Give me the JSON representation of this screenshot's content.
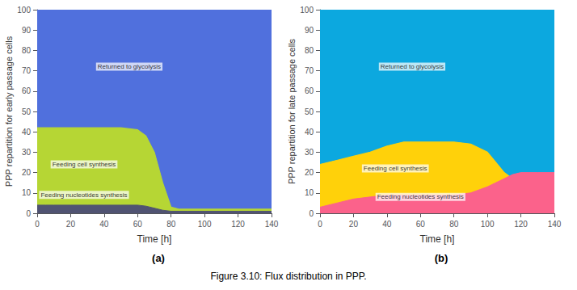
{
  "caption": "Figure 3.10: Flux distribution in PPP.",
  "chart_data": [
    {
      "type": "area",
      "title": "(a)",
      "xlabel": "Time [h]",
      "ylabel": "PPP repartition for early passage cells",
      "xlim": [
        0,
        140
      ],
      "ylim": [
        0,
        100
      ],
      "xticks": [
        0,
        20,
        40,
        60,
        80,
        100,
        120,
        140
      ],
      "yticks": [
        0,
        10,
        20,
        30,
        40,
        50,
        60,
        70,
        80,
        90,
        100
      ],
      "grid": false,
      "x": [
        0,
        5,
        10,
        20,
        30,
        40,
        50,
        60,
        65,
        70,
        75,
        80,
        85,
        90,
        100,
        110,
        120,
        130,
        140
      ],
      "series": [
        {
          "values": [
            4,
            4,
            4,
            4,
            4,
            4,
            4,
            4,
            3.5,
            2.5,
            1.5,
            1.0,
            1.0,
            1.0,
            1.0,
            1.0,
            1.0,
            1.0,
            1.0
          ]
        },
        {
          "values": [
            42,
            42,
            42,
            42,
            42,
            42,
            42,
            41,
            38,
            30,
            15,
            3,
            2,
            2,
            2,
            2,
            2,
            2,
            2
          ]
        }
      ],
      "annotations": [
        {
          "text": "Returned to glycolysis",
          "x": 55,
          "y": 72
        },
        {
          "text": "Feeding cell synthesis",
          "x": 28,
          "y": 24
        },
        {
          "text": "Feeding nucleotides synthesis",
          "x": 28,
          "y": 9
        }
      ]
    },
    {
      "type": "area",
      "title": "(b)",
      "xlabel": "Time [h]",
      "ylabel": "PPP repartition for late passage cells",
      "xlim": [
        0,
        140
      ],
      "ylim": [
        0,
        100
      ],
      "xticks": [
        0,
        20,
        40,
        60,
        80,
        100,
        120,
        140
      ],
      "yticks": [
        0,
        10,
        20,
        30,
        40,
        50,
        60,
        70,
        80,
        90,
        100
      ],
      "grid": false,
      "x": [
        0,
        10,
        20,
        30,
        40,
        50,
        60,
        70,
        80,
        90,
        100,
        105,
        110,
        115,
        120,
        125,
        130,
        140
      ],
      "series": [
        {
          "values": [
            3,
            5,
            7,
            8,
            9,
            9,
            9,
            9,
            9,
            10,
            13,
            15,
            17,
            19,
            20,
            20,
            20,
            20
          ]
        },
        {
          "values": [
            24,
            26,
            28,
            30,
            33,
            35,
            35,
            35,
            35,
            34,
            30,
            25,
            20,
            17,
            16,
            16,
            16,
            16
          ]
        }
      ],
      "annotations": [
        {
          "text": "Returned to glycolysis",
          "x": 55,
          "y": 72
        },
        {
          "text": "Feeding cell synthesis",
          "x": 45,
          "y": 22
        },
        {
          "text": "Feeding nucleotides synthesis",
          "x": 60,
          "y": 8
        }
      ]
    }
  ]
}
